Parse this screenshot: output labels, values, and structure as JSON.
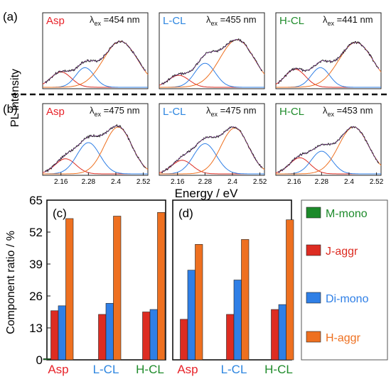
{
  "figure": {
    "y_axis_top_label": "PL intensity",
    "x_axis_top_label": "Energy / eV",
    "y_axis_bottom_label": "Component ratio / %"
  },
  "colors": {
    "asp_label": "#e8232a",
    "lcl_label": "#2d86e0",
    "hcl_label": "#1f8b2b",
    "red_fit": "#dd2c22",
    "blue_fit": "#2f7fe6",
    "orange_fit": "#ee7020",
    "green_bar": "#1c8a2a",
    "sum_fit": "#7a3c8e",
    "data_line": "#222222"
  },
  "chart_data": [
    {
      "type": "line",
      "panel": "(a)",
      "rows": [
        {
          "sample": "Asp",
          "lambda_ex": "=454 nm",
          "x_ticks": [],
          "peaks": [
            {
              "series": "J-aggr",
              "center": 2.16,
              "width": 0.045,
              "amp": 0.28
            },
            {
              "series": "Di-mono",
              "center": 2.265,
              "width": 0.04,
              "amp": 0.36
            },
            {
              "series": "H-aggr",
              "center": 2.42,
              "width": 0.075,
              "amp": 0.84
            }
          ]
        },
        {
          "sample": "L-CL",
          "lambda_ex": "=455 nm",
          "x_ticks": [],
          "peaks": [
            {
              "series": "J-aggr",
              "center": 2.165,
              "width": 0.045,
              "amp": 0.22
            },
            {
              "series": "Di-mono",
              "center": 2.28,
              "width": 0.045,
              "amp": 0.44
            },
            {
              "series": "H-aggr",
              "center": 2.42,
              "width": 0.075,
              "amp": 0.87
            }
          ]
        },
        {
          "sample": "H-CL",
          "lambda_ex": "=441 nm",
          "x_ticks": [],
          "peaks": [
            {
              "series": "J-aggr",
              "center": 2.165,
              "width": 0.045,
              "amp": 0.33
            },
            {
              "series": "Di-mono",
              "center": 2.275,
              "width": 0.04,
              "amp": 0.36
            },
            {
              "series": "H-aggr",
              "center": 2.43,
              "width": 0.075,
              "amp": 0.82
            }
          ]
        }
      ]
    },
    {
      "type": "line",
      "panel": "(b)",
      "rows": [
        {
          "sample": "Asp",
          "lambda_ex": "=475 nm",
          "x_ticks": [
            "2.16",
            "2.28",
            "2.4",
            "2.52"
          ],
          "peaks": [
            {
              "series": "J-aggr",
              "center": 2.18,
              "width": 0.045,
              "amp": 0.3
            },
            {
              "series": "Di-mono",
              "center": 2.28,
              "width": 0.05,
              "amp": 0.62
            },
            {
              "series": "H-aggr",
              "center": 2.41,
              "width": 0.06,
              "amp": 0.93
            }
          ]
        },
        {
          "sample": "L-CL",
          "lambda_ex": "=475 nm",
          "x_ticks": [
            "2.16",
            "2.28",
            "2.4",
            "2.52"
          ],
          "peaks": [
            {
              "series": "J-aggr",
              "center": 2.18,
              "width": 0.045,
              "amp": 0.27
            },
            {
              "series": "Di-mono",
              "center": 2.28,
              "width": 0.05,
              "amp": 0.6
            },
            {
              "series": "H-aggr",
              "center": 2.41,
              "width": 0.06,
              "amp": 0.91
            }
          ]
        },
        {
          "sample": "H-CL",
          "lambda_ex": "=453 nm",
          "x_ticks": [
            "2.16",
            "2.28",
            "2.4",
            "2.52"
          ],
          "peaks": [
            {
              "series": "J-aggr",
              "center": 2.185,
              "width": 0.045,
              "amp": 0.32
            },
            {
              "series": "Di-mono",
              "center": 2.28,
              "width": 0.045,
              "amp": 0.45
            },
            {
              "series": "H-aggr",
              "center": 2.42,
              "width": 0.065,
              "amp": 0.93
            }
          ]
        }
      ]
    },
    {
      "type": "bar",
      "panel": "(c)",
      "categories": [
        "Asp",
        "L-CL",
        "H-CL"
      ],
      "series": [
        {
          "name": "M-mono",
          "values": [
            0.5,
            0,
            0
          ]
        },
        {
          "name": "J-aggr",
          "values": [
            20,
            18.5,
            19.5
          ]
        },
        {
          "name": "Di-mono",
          "values": [
            22,
            23,
            20.5
          ]
        },
        {
          "name": "H-aggr",
          "values": [
            57.5,
            58.5,
            60
          ]
        }
      ],
      "ylim": [
        0,
        65
      ],
      "y_ticks": [
        "0",
        "13",
        "26",
        "39",
        "52",
        "65"
      ]
    },
    {
      "type": "bar",
      "panel": "(d)",
      "categories": [
        "Asp",
        "L-CL",
        "H-CL"
      ],
      "series": [
        {
          "name": "M-mono",
          "values": [
            0,
            0,
            0
          ]
        },
        {
          "name": "J-aggr",
          "values": [
            16.5,
            18.5,
            20.5
          ]
        },
        {
          "name": "Di-mono",
          "values": [
            36.5,
            32.5,
            22.5
          ]
        },
        {
          "name": "H-aggr",
          "values": [
            47,
            49,
            57
          ]
        }
      ],
      "ylim": [
        0,
        65
      ]
    }
  ],
  "legend": [
    "M-mono",
    "J-aggr",
    "Di-mono",
    "H-aggr"
  ]
}
